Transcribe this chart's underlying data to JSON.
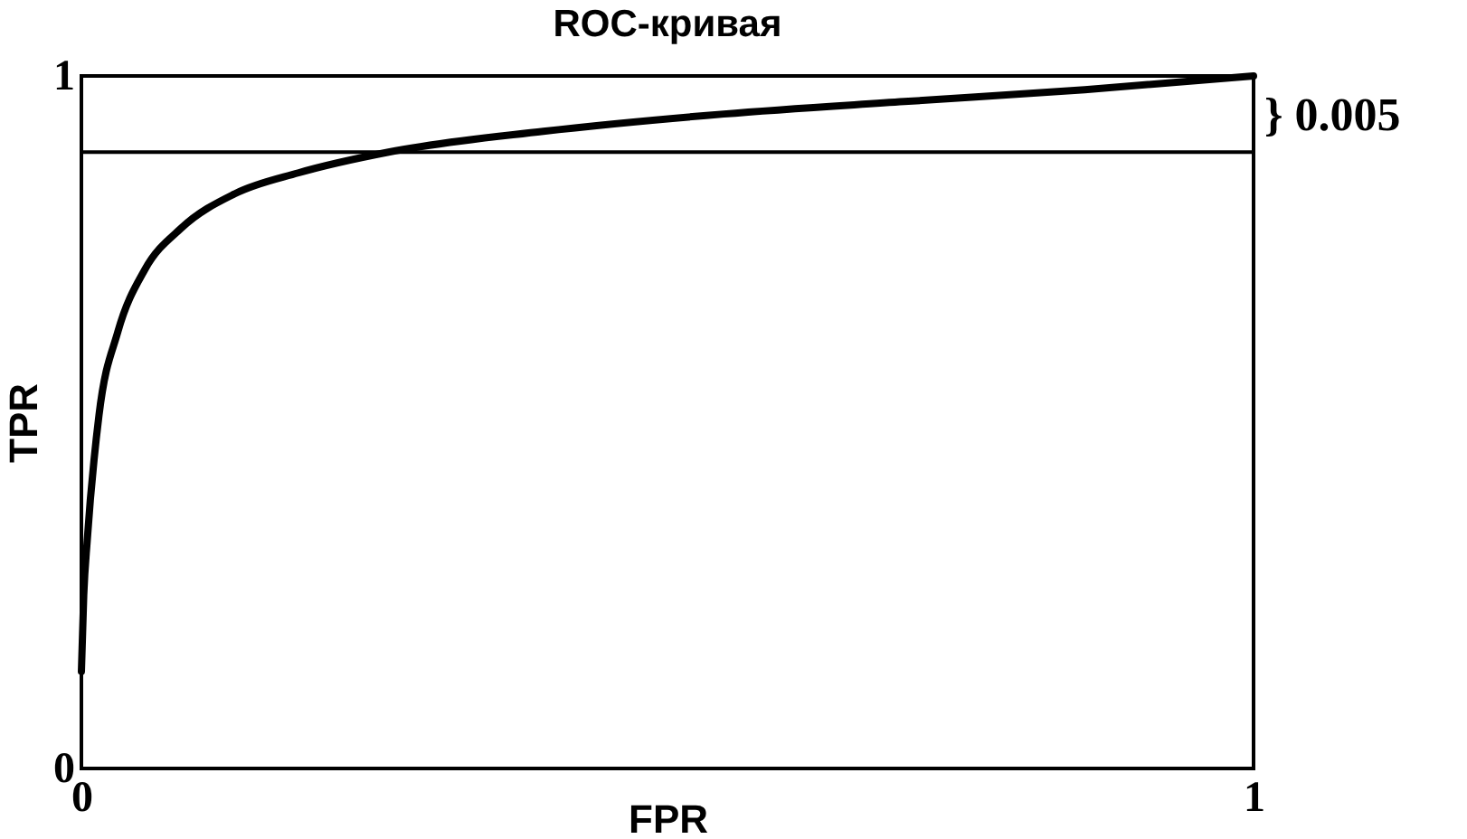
{
  "chart_data": {
    "type": "line",
    "title": "ROC-кривая",
    "xlabel": "FPR",
    "ylabel": "TPR",
    "x": [
      0,
      0.002,
      0.005,
      0.015,
      0.031,
      0.054,
      0.085,
      0.131,
      0.185,
      0.262,
      0.394,
      0.548,
      0.702,
      0.856,
      1
    ],
    "series": [
      {
        "color": "#000000",
        "values": [
          0.14,
          0.25,
          0.33,
          0.51,
          0.63,
          0.72,
          0.78,
          0.83,
          0.86,
          0.89,
          0.92,
          0.945,
          0.963,
          0.98,
          1
        ]
      }
    ],
    "xlim": [
      0,
      1
    ],
    "ylim": [
      0,
      1
    ],
    "xticks": [
      0,
      1
    ],
    "yticks": [
      0,
      1
    ],
    "ref_lines": [
      {
        "axis": "y",
        "value": 0.89,
        "label": null,
        "color": "#000000"
      }
    ],
    "annotations": [
      "} 0.005"
    ]
  }
}
